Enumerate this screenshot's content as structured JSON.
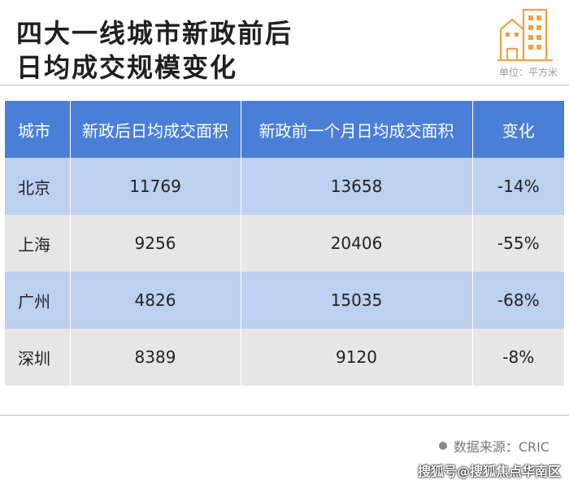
{
  "title": {
    "line1": "四大一线城市新政前后",
    "line2": "日均成交规模变化"
  },
  "unit": "单位：平方米",
  "icons": {
    "building": "building-icon",
    "source_dot": "dot-icon"
  },
  "colors": {
    "header_bg": "#4a7fd8",
    "row_light_blue": "#bcd0ef",
    "row_gray": "#e6e6e6",
    "building_orange": "#f0a04b"
  },
  "chart_data": {
    "type": "table",
    "columns": [
      "城市",
      "新政后日均成交面积",
      "新政前一个月日均成交面积",
      "变化"
    ],
    "rows": [
      [
        "北京",
        "11769",
        "13658",
        "-14%"
      ],
      [
        "上海",
        "9256",
        "20406",
        "-55%"
      ],
      [
        "广州",
        "4826",
        "15035",
        "-68%"
      ],
      [
        "深圳",
        "8389",
        "9120",
        "-8%"
      ]
    ]
  },
  "source": "数据来源：CRIC",
  "watermark": "搜狐号@搜狐焦点华南区"
}
